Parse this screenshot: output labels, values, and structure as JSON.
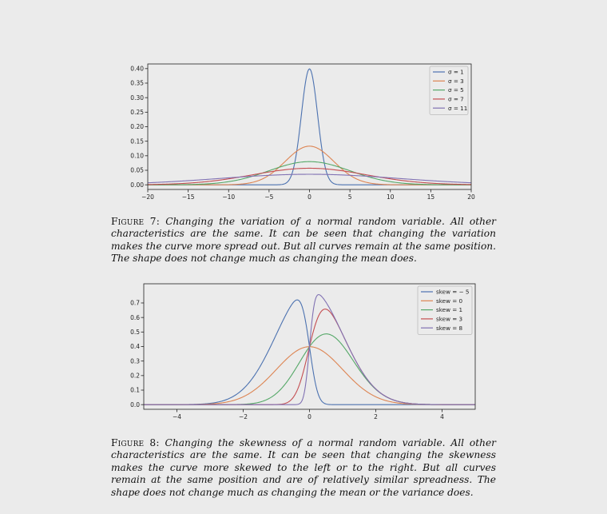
{
  "figures": [
    {
      "label": "Figure 7:",
      "caption": "Changing the variation of a normal random variable. All other characteristics are the same. It can be seen that changing the variation makes the curve more spread out. But all curves remain at the same position. The shape does not change much as changing the mean does."
    },
    {
      "label": "Figure 8:",
      "caption": "Changing the skewness of a normal random variable. All other characteristics are the same. It can be seen that changing the skewness makes the curve more skewed to the left or to the right. But all curves remain at the same position and are of relatively similar spreadness. The shape does not change much as changing the mean or the variance does."
    }
  ],
  "chart_data": [
    {
      "type": "line",
      "x_range": [
        -20,
        20
      ],
      "ylim": [
        0,
        0.4
      ],
      "x_ticks": [
        "-20",
        "-15",
        "-10",
        "-5",
        "0",
        "5",
        "10",
        "15",
        "20"
      ],
      "y_ticks": [
        "0.00",
        "0.05",
        "0.10",
        "0.15",
        "0.20",
        "0.25",
        "0.30",
        "0.35",
        "0.40"
      ],
      "legend_position": "top-right",
      "grid": false,
      "series": [
        {
          "name": "σ = 1",
          "family": "normal",
          "mu": 0,
          "sigma": 1,
          "color": "#4c72b0"
        },
        {
          "name": "σ = 3",
          "family": "normal",
          "mu": 0,
          "sigma": 3,
          "color": "#dd8452"
        },
        {
          "name": "σ = 5",
          "family": "normal",
          "mu": 0,
          "sigma": 5,
          "color": "#55a868"
        },
        {
          "name": "σ = 7",
          "family": "normal",
          "mu": 0,
          "sigma": 7,
          "color": "#c44e52"
        },
        {
          "name": "σ = 11",
          "family": "normal",
          "mu": 0,
          "sigma": 11,
          "color": "#8172b3"
        }
      ]
    },
    {
      "type": "line",
      "x_range": [
        -5,
        5
      ],
      "ylim": [
        0,
        0.8
      ],
      "x_ticks": [
        "-4",
        "-2",
        "0",
        "2",
        "4"
      ],
      "y_ticks": [
        "0.0",
        "0.1",
        "0.2",
        "0.3",
        "0.4",
        "0.5",
        "0.6",
        "0.7"
      ],
      "legend_position": "top-right",
      "grid": false,
      "series": [
        {
          "name": "skew = − 5",
          "family": "skew-normal",
          "alpha": -5,
          "color": "#4c72b0"
        },
        {
          "name": "skew = 0",
          "family": "skew-normal",
          "alpha": 0,
          "color": "#dd8452"
        },
        {
          "name": "skew = 1",
          "family": "skew-normal",
          "alpha": 1,
          "color": "#55a868"
        },
        {
          "name": "skew = 3",
          "family": "skew-normal",
          "alpha": 3,
          "color": "#c44e52"
        },
        {
          "name": "skew = 8",
          "family": "skew-normal",
          "alpha": 8,
          "color": "#8172b3"
        }
      ]
    }
  ]
}
